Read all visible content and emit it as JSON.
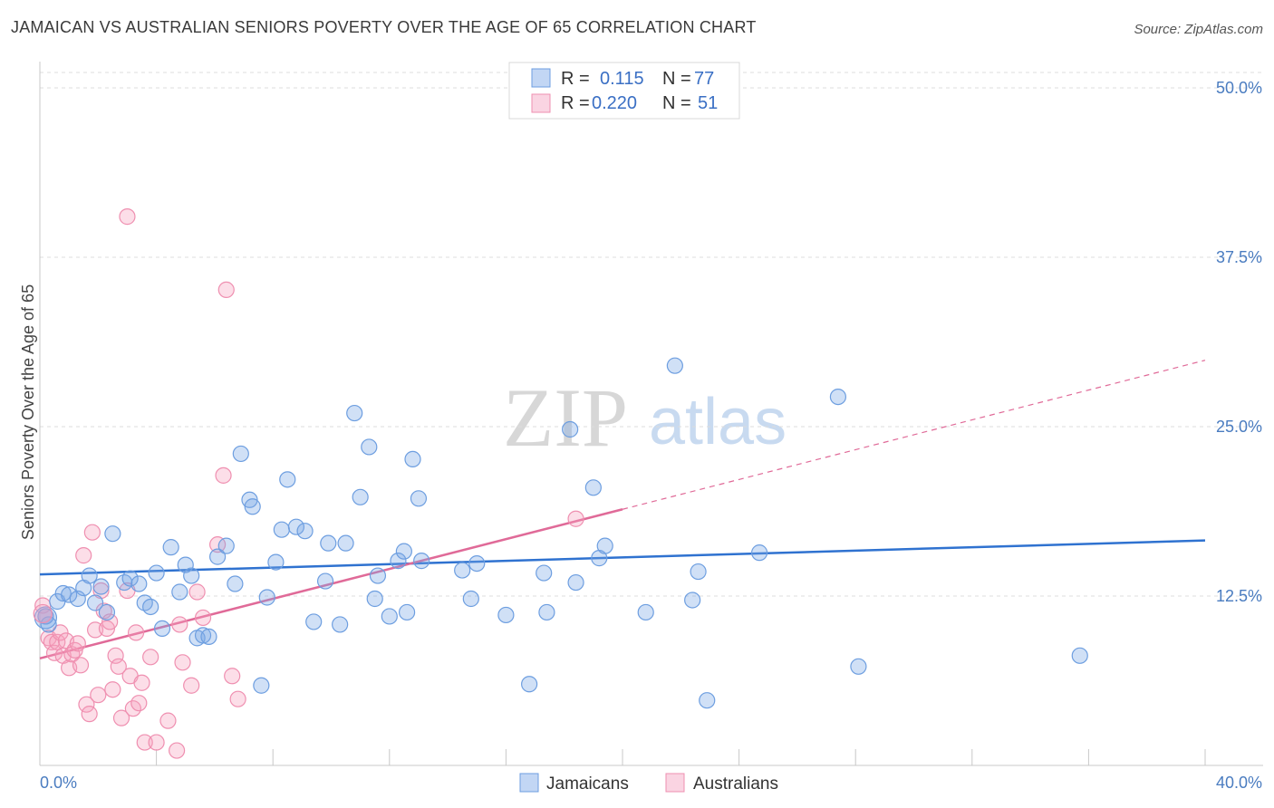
{
  "title": "JAMAICAN VS AUSTRALIAN SENIORS POVERTY OVER THE AGE OF 65 CORRELATION CHART",
  "source": "Source: ZipAtlas.com",
  "watermark": {
    "zip": "ZIP",
    "atlas": "atlas"
  },
  "legend": {
    "rows": [
      {
        "r_label": "R =",
        "r_value": "0.115",
        "n_label": "N =",
        "n_value": "77"
      },
      {
        "r_label": "R =",
        "r_value": "0.220",
        "n_label": "N =",
        "n_value": "51"
      }
    ]
  },
  "bottom_legend": [
    "Jamaicans",
    "Australians"
  ],
  "colors": {
    "jamaicans": "#6d9ee0",
    "jamaicans_fill": "rgba(120,165,230,0.35)",
    "jamaicans_line": "#2f72d0",
    "australians": "#ef8fb0",
    "australians_fill": "rgba(245,160,190,0.35)",
    "australians_line": "#e06a98"
  },
  "chart_data": {
    "type": "scatter",
    "xlabel": "",
    "ylabel": "Seniors Poverty Over the Age of 65",
    "xlim": [
      0,
      40
    ],
    "ylim": [
      0,
      50
    ],
    "x_tick_labels": [
      "0.0%",
      "40.0%"
    ],
    "y_ticks": [
      12.5,
      25.0,
      37.5,
      50.0
    ],
    "y_tick_labels": [
      "12.5%",
      "25.0%",
      "37.5%",
      "50.0%"
    ],
    "grid": true,
    "series": [
      {
        "name": "Jamaicans",
        "trend": {
          "x0": 0,
          "y0": 14.1,
          "x1": 40,
          "y1": 16.6
        },
        "points": [
          [
            0.2,
            11.0
          ],
          [
            0.3,
            10.4
          ],
          [
            0.6,
            12.1
          ],
          [
            0.8,
            12.7
          ],
          [
            1.0,
            12.6
          ],
          [
            1.3,
            12.3
          ],
          [
            1.5,
            13.1
          ],
          [
            1.7,
            14.0
          ],
          [
            1.9,
            12.0
          ],
          [
            2.1,
            13.2
          ],
          [
            2.3,
            11.3
          ],
          [
            2.5,
            17.1
          ],
          [
            2.9,
            13.5
          ],
          [
            3.1,
            13.8
          ],
          [
            3.4,
            13.4
          ],
          [
            3.6,
            12.0
          ],
          [
            3.8,
            11.7
          ],
          [
            4.0,
            14.2
          ],
          [
            4.2,
            10.1
          ],
          [
            4.5,
            16.1
          ],
          [
            4.8,
            12.8
          ],
          [
            5.0,
            14.8
          ],
          [
            5.2,
            14.0
          ],
          [
            5.4,
            9.4
          ],
          [
            5.6,
            9.6
          ],
          [
            5.8,
            9.5
          ],
          [
            6.1,
            15.4
          ],
          [
            6.4,
            16.2
          ],
          [
            6.7,
            13.4
          ],
          [
            6.9,
            23.0
          ],
          [
            7.2,
            19.6
          ],
          [
            7.3,
            19.1
          ],
          [
            7.6,
            5.9
          ],
          [
            7.8,
            12.4
          ],
          [
            8.1,
            15.0
          ],
          [
            8.3,
            17.4
          ],
          [
            8.5,
            21.1
          ],
          [
            8.8,
            17.6
          ],
          [
            9.1,
            17.3
          ],
          [
            9.4,
            10.6
          ],
          [
            9.8,
            13.6
          ],
          [
            9.9,
            16.4
          ],
          [
            10.3,
            10.4
          ],
          [
            10.5,
            16.4
          ],
          [
            10.8,
            26.0
          ],
          [
            11.0,
            19.8
          ],
          [
            11.3,
            23.5
          ],
          [
            11.5,
            12.3
          ],
          [
            11.6,
            14.0
          ],
          [
            12.0,
            11.0
          ],
          [
            12.3,
            15.1
          ],
          [
            12.5,
            15.8
          ],
          [
            12.6,
            11.3
          ],
          [
            12.8,
            22.6
          ],
          [
            13.0,
            19.7
          ],
          [
            13.1,
            15.1
          ],
          [
            14.5,
            14.4
          ],
          [
            14.8,
            12.3
          ],
          [
            15.0,
            14.9
          ],
          [
            16.0,
            11.1
          ],
          [
            16.8,
            6.0
          ],
          [
            17.3,
            14.2
          ],
          [
            17.4,
            11.3
          ],
          [
            18.2,
            24.8
          ],
          [
            18.4,
            13.5
          ],
          [
            19.0,
            20.5
          ],
          [
            19.2,
            15.3
          ],
          [
            19.4,
            16.2
          ],
          [
            20.8,
            11.3
          ],
          [
            21.8,
            29.5
          ],
          [
            22.4,
            12.2
          ],
          [
            22.6,
            14.3
          ],
          [
            22.9,
            4.8
          ],
          [
            24.7,
            15.7
          ],
          [
            27.4,
            27.2
          ],
          [
            28.1,
            7.3
          ],
          [
            35.7,
            8.1
          ]
        ]
      },
      {
        "name": "Australians",
        "trend": {
          "x0": 0,
          "y0": 7.9,
          "x1": 40,
          "y1": 29.9,
          "solid_to_x": 20
        },
        "points": [
          [
            0.1,
            11.8
          ],
          [
            0.2,
            11.0
          ],
          [
            0.3,
            9.4
          ],
          [
            0.4,
            9.1
          ],
          [
            0.5,
            8.3
          ],
          [
            0.6,
            9.1
          ],
          [
            0.7,
            9.8
          ],
          [
            0.8,
            8.1
          ],
          [
            0.9,
            9.2
          ],
          [
            1.0,
            7.2
          ],
          [
            1.1,
            8.2
          ],
          [
            1.2,
            8.5
          ],
          [
            1.3,
            9.0
          ],
          [
            1.4,
            7.4
          ],
          [
            1.5,
            15.5
          ],
          [
            1.6,
            4.5
          ],
          [
            1.7,
            3.8
          ],
          [
            1.8,
            17.2
          ],
          [
            1.9,
            10.0
          ],
          [
            2.0,
            5.2
          ],
          [
            2.1,
            12.9
          ],
          [
            2.2,
            11.4
          ],
          [
            2.3,
            10.1
          ],
          [
            2.4,
            10.6
          ],
          [
            2.5,
            5.6
          ],
          [
            2.6,
            8.1
          ],
          [
            2.7,
            7.3
          ],
          [
            2.8,
            3.5
          ],
          [
            3.0,
            12.9
          ],
          [
            3.1,
            6.6
          ],
          [
            3.2,
            4.2
          ],
          [
            3.3,
            9.8
          ],
          [
            3.4,
            4.6
          ],
          [
            3.5,
            6.1
          ],
          [
            3.6,
            1.7
          ],
          [
            3.8,
            8.0
          ],
          [
            3.0,
            40.5
          ],
          [
            4.0,
            1.7
          ],
          [
            4.4,
            3.3
          ],
          [
            4.7,
            1.1
          ],
          [
            4.9,
            7.6
          ],
          [
            5.2,
            5.9
          ],
          [
            5.4,
            12.8
          ],
          [
            5.6,
            10.9
          ],
          [
            6.3,
            21.4
          ],
          [
            6.1,
            16.3
          ],
          [
            6.6,
            6.6
          ],
          [
            6.8,
            4.9
          ],
          [
            6.4,
            35.1
          ],
          [
            18.4,
            18.2
          ],
          [
            4.8,
            10.4
          ]
        ]
      }
    ]
  }
}
